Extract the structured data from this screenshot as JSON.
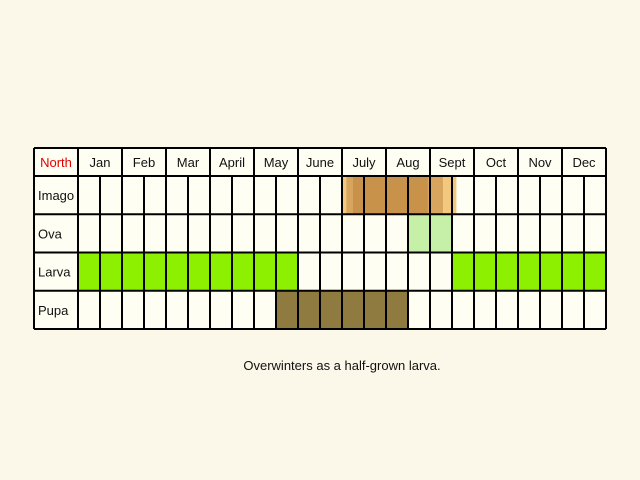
{
  "region_label": "North",
  "colors": {
    "region_label": "#e00000",
    "cell_fill": "#fffef3",
    "grid_line": "#000000",
    "imago_dark": "#c8924a",
    "imago_mid": "#d7a55e",
    "imago_light": "#f2c77e",
    "ova": "#c6efa8",
    "larva": "#8cf000",
    "pupa": "#8f7a40"
  },
  "months": [
    "Jan",
    "Feb",
    "Mar",
    "April",
    "May",
    "June",
    "July",
    "Aug",
    "Sept",
    "Oct",
    "Nov",
    "Dec"
  ],
  "stages": [
    {
      "name": "Imago",
      "periods": [
        [
          6.0,
          6.6,
          "imago_light"
        ],
        [
          6.1,
          8.3,
          "imago_mid"
        ],
        [
          6.25,
          7.95,
          "imago_dark"
        ],
        [
          8.3,
          8.6,
          "imago_light"
        ]
      ]
    },
    {
      "name": "Ova",
      "periods": [
        [
          7.5,
          8.5,
          "ova"
        ]
      ]
    },
    {
      "name": "Larva",
      "periods": [
        [
          0,
          5,
          "larva"
        ],
        [
          8.5,
          12,
          "larva"
        ]
      ]
    },
    {
      "name": "Pupa",
      "periods": [
        [
          4.5,
          7.5,
          "pupa"
        ]
      ]
    }
  ],
  "caption": "Overwinters as a half-grown larva."
}
